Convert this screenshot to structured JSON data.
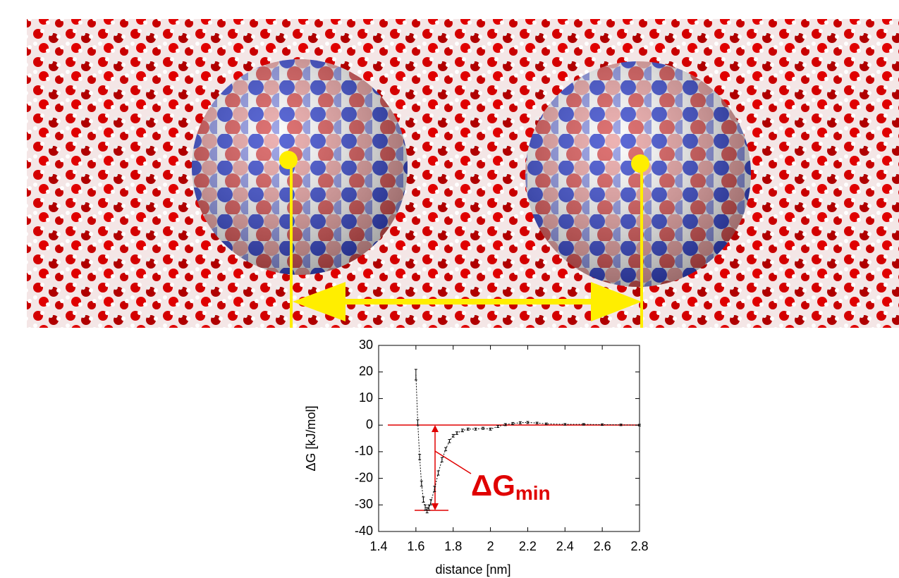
{
  "chart_data": {
    "type": "line",
    "xlabel": "distance [nm]",
    "ylabel": "ΔG [kJ/mol]",
    "annotation": {
      "text": "ΔG",
      "subscript": "min"
    },
    "x": [
      1.6,
      1.61,
      1.62,
      1.63,
      1.64,
      1.65,
      1.66,
      1.67,
      1.68,
      1.7,
      1.72,
      1.74,
      1.76,
      1.78,
      1.8,
      1.82,
      1.85,
      1.88,
      1.92,
      1.96,
      2.0,
      2.04,
      2.08,
      2.12,
      2.16,
      2.2,
      2.25,
      2.3,
      2.4,
      2.5,
      2.6,
      2.7,
      2.8
    ],
    "series": [
      {
        "name": "ΔG",
        "color": "#000000",
        "values": [
          19,
          1,
          -12,
          -22,
          -28,
          -31,
          -32,
          -31,
          -29,
          -24,
          -18,
          -13,
          -9,
          -6,
          -4,
          -3,
          -2,
          -1.5,
          -1.5,
          -1.2,
          -1.5,
          -0.5,
          0.2,
          0.6,
          0.9,
          1,
          0.8,
          0.5,
          0.3,
          0.3,
          0.2,
          0.1,
          0
        ],
        "errors": [
          2,
          1,
          1,
          1,
          1,
          1,
          1,
          1,
          1,
          1,
          0.8,
          0.8,
          0.6,
          0.6,
          0.5,
          0.5,
          0.5,
          0.4,
          0.4,
          0.4,
          0.4,
          0.4,
          0.4,
          0.4,
          0.4,
          0.4,
          0.3,
          0.3,
          0.3,
          0.3,
          0.3,
          0.3,
          0.3
        ]
      }
    ],
    "xlim": [
      1.4,
      2.8
    ],
    "xticks": [
      1.4,
      1.6,
      1.8,
      2,
      2.2,
      2.4,
      2.6,
      2.8
    ],
    "ylim": [
      -40,
      30
    ],
    "yticks": [
      -40,
      -30,
      -20,
      -10,
      0,
      10,
      20,
      30
    ]
  }
}
